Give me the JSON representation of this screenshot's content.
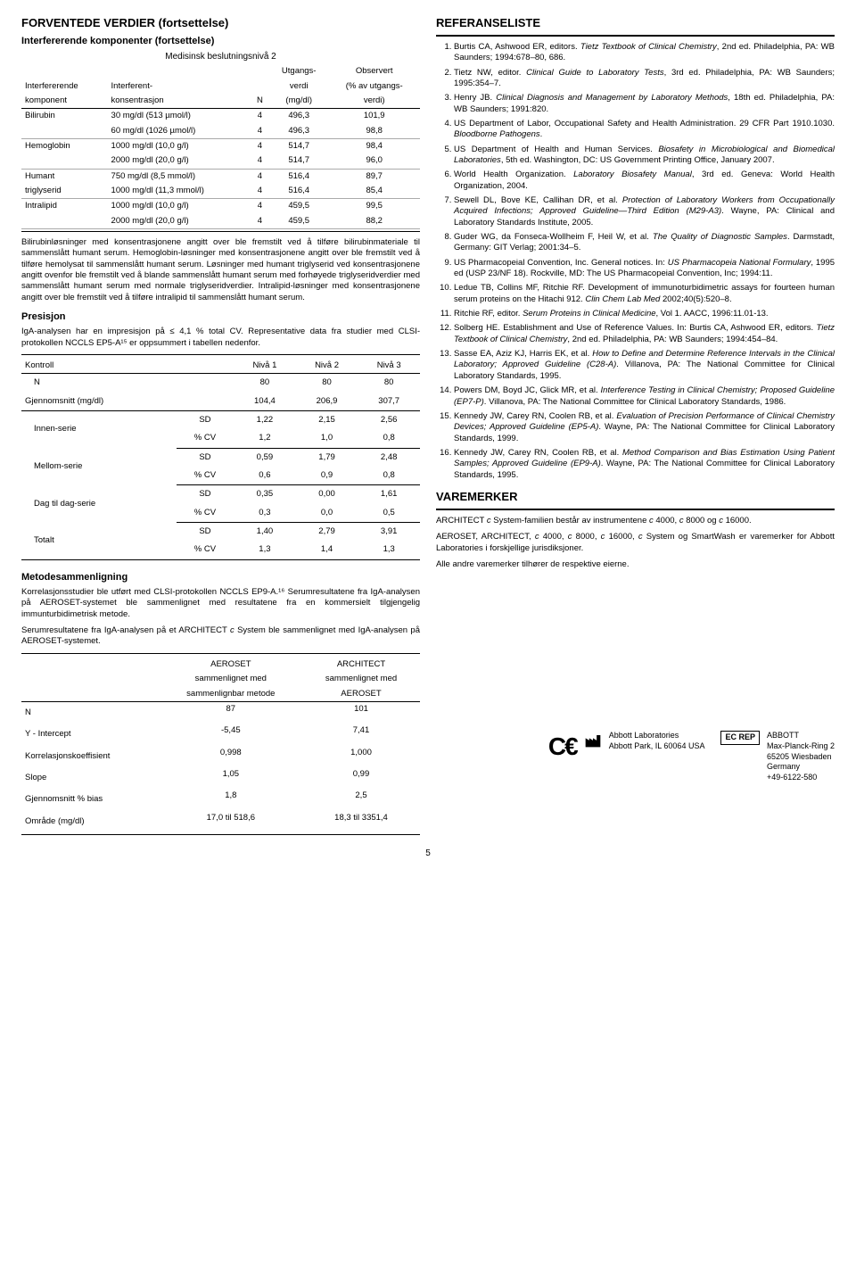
{
  "left": {
    "h1": "FORVENTEDE VERDIER (fortsettelse)",
    "h2": "Interfererende komponenter (fortsettelse)",
    "med": "Medisinsk beslutningsnivå 2",
    "tbl1": {
      "headers": {
        "c1a": "Interfererende",
        "c1b": "komponent",
        "c2a": "Interferent-",
        "c2b": "konsentrasjon",
        "c3": "N",
        "c4a": "Utgangs-",
        "c4b": "verdi",
        "c4c": "(mg/dl)",
        "c5a": "Observert",
        "c5b": "(% av utgangs-",
        "c5c": "verdi)"
      },
      "rows": [
        {
          "g": "Bilirubin",
          "c": "30 mg/dl (513 µmol/l)",
          "n": "4",
          "u": "496,3",
          "o": "101,9"
        },
        {
          "g": "",
          "c": "60 mg/dl (1026 µmol/l)",
          "n": "4",
          "u": "496,3",
          "o": "98,8"
        },
        {
          "g": "Hemoglobin",
          "c": "1000 mg/dl (10,0 g/l)",
          "n": "4",
          "u": "514,7",
          "o": "98,4"
        },
        {
          "g": "",
          "c": "2000 mg/dl (20,0 g/l)",
          "n": "4",
          "u": "514,7",
          "o": "96,0"
        },
        {
          "g": "Humant",
          "c": "750 mg/dl (8,5 mmol/l)",
          "n": "4",
          "u": "516,4",
          "o": "89,7"
        },
        {
          "g": "triglyserid",
          "c": "1000 mg/dl (11,3 mmol/l)",
          "n": "4",
          "u": "516,4",
          "o": "85,4"
        },
        {
          "g": "Intralipid",
          "c": "1000 mg/dl (10,0 g/l)",
          "n": "4",
          "u": "459,5",
          "o": "99,5"
        },
        {
          "g": "",
          "c": "2000 mg/dl (20,0 g/l)",
          "n": "4",
          "u": "459,5",
          "o": "88,2"
        }
      ]
    },
    "para1": "Bilirubinløsninger med konsentrasjonene angitt over ble fremstilt ved å tilføre bilirubinmateriale til sammenslått humant serum. Hemoglobin-løsninger med konsentrasjonene angitt over ble fremstilt ved å tilføre hemolysat til sammenslått humant serum. Løsninger med humant triglyserid ved konsentrasjonene angitt ovenfor ble fremstilt ved å blande sammenslått humant serum med forhøyede triglyseridverdier med sammenslått humant serum med normale triglyseridverdier. Intralipid-løsninger med konsentrasjonene angitt over ble fremstilt ved å tilføre intralipid til sammenslått humant serum.",
    "pres_h": "Presisjon",
    "pres_p": "IgA-analysen har en impresisjon på ≤ 4,1 % total CV. Representative data fra studier med CLSI-protokollen NCCLS EP5-A¹⁵ er oppsummert i tabellen nedenfor.",
    "tbl2": {
      "h": {
        "c1": "Kontroll",
        "c2": "Nivå 1",
        "c3": "Nivå 2",
        "c4": "Nivå 3"
      },
      "r_n": {
        "l": "N",
        "v": [
          "80",
          "80",
          "80"
        ]
      },
      "r_g": {
        "l": "Gjennomsnitt (mg/dl)",
        "v": [
          "104,4",
          "206,9",
          "307,7"
        ]
      },
      "groups": [
        {
          "name": "Innen-serie",
          "sd": [
            "1,22",
            "2,15",
            "2,56"
          ],
          "cv": [
            "1,2",
            "1,0",
            "0,8"
          ]
        },
        {
          "name": "Mellom-serie",
          "sd": [
            "0,59",
            "1,79",
            "2,48"
          ],
          "cv": [
            "0,6",
            "0,9",
            "0,8"
          ]
        },
        {
          "name": "Dag til dag-serie",
          "sd": [
            "0,35",
            "0,00",
            "1,61"
          ],
          "cv": [
            "0,3",
            "0,0",
            "0,5"
          ]
        },
        {
          "name": "Totalt",
          "sd": [
            "1,40",
            "2,79",
            "3,91"
          ],
          "cv": [
            "1,3",
            "1,4",
            "1,3"
          ]
        }
      ],
      "sd_l": "SD",
      "cv_l": "% CV"
    },
    "met_h": "Metodesammenligning",
    "met_p1": "Korrelasjonsstudier ble utført med CLSI-protokollen NCCLS EP9-A.¹⁶ Serumresultatene fra IgA-analysen på AEROSET-systemet ble sammenlignet med resultatene fra en kommersielt tilgjengelig immunturbidimetrisk metode.",
    "met_p2a": "Serumresultatene fra IgA-analysen på et ARCHITECT ",
    "met_p2b": "c",
    "met_p2c": " System ble sammenlignet med IgA-analysen på AEROSET-systemet.",
    "tbl3": {
      "h": {
        "c2a": "AEROSET",
        "c2b": "sammenlignet med",
        "c2c": "sammenlignbar metode",
        "c3a": "ARCHITECT",
        "c3b": "sammenlignet med",
        "c3c": "AEROSET"
      },
      "rows": [
        {
          "l": "N",
          "a": "87",
          "b": "101"
        },
        {
          "l": "Y - Intercept",
          "a": "-5,45",
          "b": "7,41"
        },
        {
          "l": "Korrelasjonskoeffisient",
          "a": "0,998",
          "b": "1,000"
        },
        {
          "l": "Slope",
          "a": "1,05",
          "b": "0,99"
        },
        {
          "l": "Gjennomsnitt % bias",
          "a": "1,8",
          "b": "2,5"
        },
        {
          "l": "Område (mg/dl)",
          "a": "17,0 til 518,6",
          "b": "18,3 til 3351,4"
        }
      ]
    }
  },
  "right": {
    "ref_h": "REFERANSELISTE",
    "refs": [
      "Burtis CA, Ashwood ER, editors. <i>Tietz Textbook of Clinical Chemistry</i>, 2nd ed. Philadelphia, PA: WB Saunders; 1994:678–80, 686.",
      "Tietz NW, editor. <i>Clinical Guide to Laboratory Tests</i>, 3rd ed. Philadelphia, PA: WB Saunders; 1995:354–7.",
      "Henry JB. <i>Clinical Diagnosis and Management by Laboratory Methods</i>, 18th ed. Philadelphia, PA: WB Saunders; 1991:820.",
      "US Department of Labor, Occupational Safety and Health Administration. 29 CFR Part 1910.1030. <i>Bloodborne Pathogens</i>.",
      "US Department of Health and Human Services. <i>Biosafety in Microbiological and Biomedical Laboratories</i>, 5th ed. Washington, DC: US Government Printing Office, January 2007.",
      "World Health Organization. <i>Laboratory Biosafety Manual</i>, 3rd ed. Geneva: World Health Organization, 2004.",
      "Sewell DL, Bove KE, Callihan DR, et al. <i>Protection of Laboratory Workers from Occupationally Acquired Infections; Approved Guideline—Third Edition (M29-A3)</i>. Wayne, PA: Clinical and Laboratory Standards Institute, 2005.",
      "Guder WG, da Fonseca-Wollheim F, Heil W, et al. <i>The Quality of Diagnostic Samples</i>. Darmstadt, Germany: GIT Verlag; 2001:34–5.",
      "US Pharmacopeial Convention, Inc. General notices. In: <i>US Pharmacopeia National Formulary</i>, 1995 ed (USP 23/NF 18). Rockville, MD: The US Pharmacopeial Convention, Inc; 1994:11.",
      "Ledue TB, Collins MF, Ritchie RF. Development of immunoturbidimetric assays for fourteen human serum proteins on the Hitachi 912. <i>Clin Chem Lab Med</i> 2002;40(5):520–8.",
      "Ritchie RF, editor. <i>Serum Proteins in Clinical Medicine</i>, Vol 1. AACC, 1996:11.01-13.",
      "Solberg HE. Establishment and Use of Reference Values. In: Burtis CA, Ashwood ER, editors. <i>Tietz Textbook of Clinical Chemistry</i>, 2nd ed. Philadelphia, PA: WB Saunders; 1994:454–84.",
      "Sasse EA, Aziz KJ, Harris EK, et al. <i>How to Define and Determine Reference Intervals in the Clinical Laboratory; Approved Guideline (C28-A)</i>. Villanova, PA: The National Committee for Clinical Laboratory Standards, 1995.",
      "Powers DM, Boyd JC, Glick MR, et al. <i>Interference Testing in Clinical Chemistry; Proposed Guideline (EP7-P)</i>. Villanova, PA: The National Committee for Clinical Laboratory Standards, 1986.",
      "Kennedy JW, Carey RN, Coolen RB, et al. <i>Evaluation of Precision Performance of Clinical Chemistry Devices; Approved Guideline (EP5-A)</i>. Wayne, PA: The National Committee for Clinical Laboratory Standards, 1999.",
      "Kennedy JW, Carey RN, Coolen RB, et al. <i>Method Comparison and Bias Estimation Using Patient Samples; Approved Guideline (EP9-A)</i>. Wayne, PA: The National Committee for Clinical Laboratory Standards, 1995."
    ],
    "vm_h": "VAREMERKER",
    "vm_p1a": "ARCHITECT ",
    "vm_p1b": "c",
    "vm_p1c": " System-familien består av instrumentene ",
    "vm_p1d": "c",
    "vm_p1e": " 4000, ",
    "vm_p1f": "c",
    "vm_p1g": " 8000 og ",
    "vm_p1h": "c",
    "vm_p1i": " 16000.",
    "vm_p2a": "AEROSET, ARCHITECT, ",
    "vm_p2b": "c",
    "vm_p2c": " 4000, ",
    "vm_p2d": "c",
    "vm_p2e": " 8000, ",
    "vm_p2f": "c",
    "vm_p2g": " 16000, ",
    "vm_p2h": "c",
    "vm_p2i": " System og SmartWash er varemerker for Abbott Laboratories i forskjellige jurisdiksjoner.",
    "vm_p3": "Alle andre varemerker tilhører de respektive eierne."
  },
  "footer": {
    "mfr1": "Abbott Laboratories",
    "mfr2": "Abbott Park, IL 60064 USA",
    "ecrep": "EC REP",
    "rep1": "ABBOTT",
    "rep2": "Max-Planck-Ring 2",
    "rep3": "65205 Wiesbaden",
    "rep4": "Germany",
    "rep5": "+49-6122-580"
  },
  "pagenum": "5"
}
